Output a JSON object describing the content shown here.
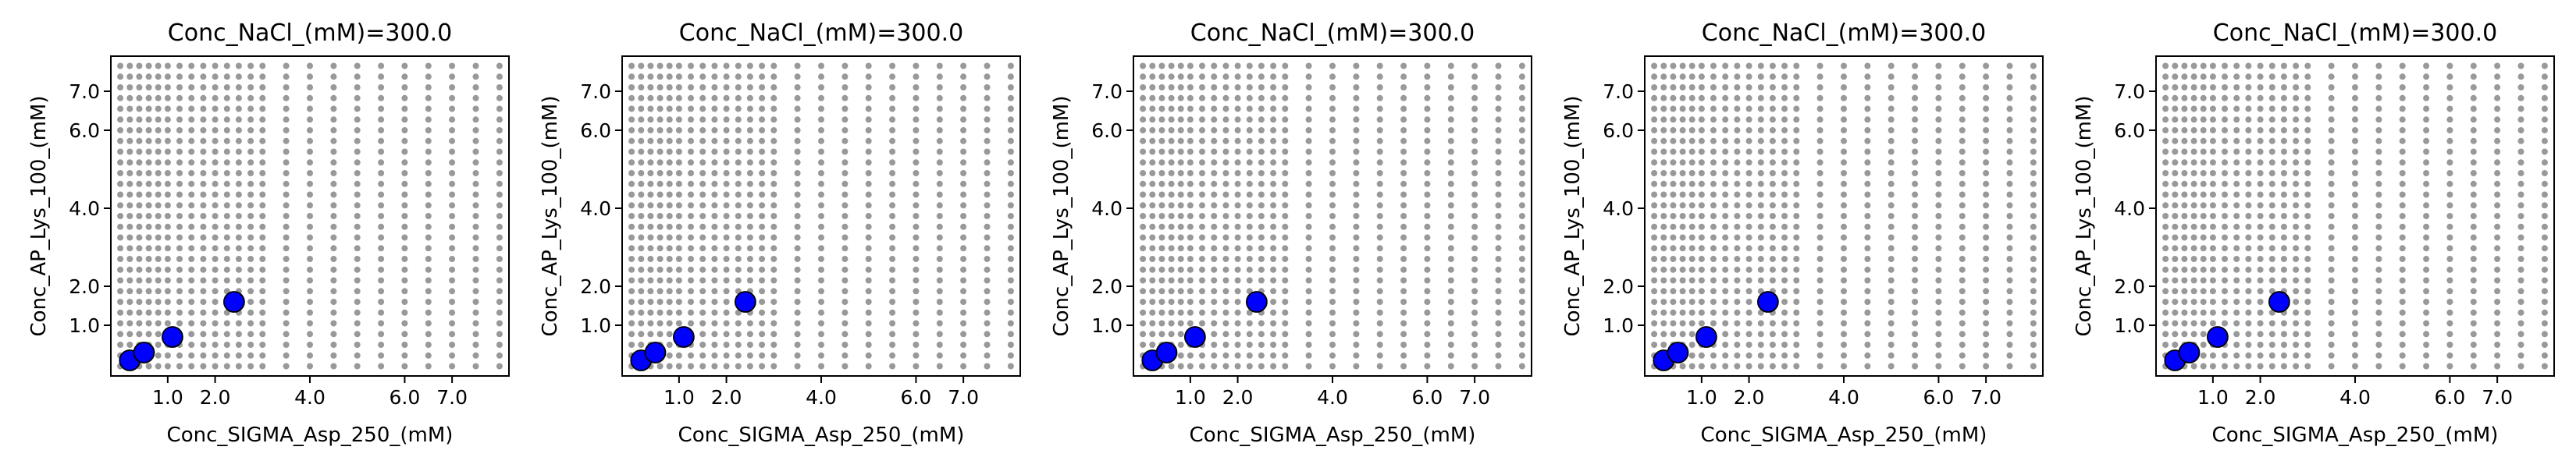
{
  "chart_data": [
    {
      "type": "scatter",
      "title": "Conc_NaCl_(mM)=300.0",
      "xlabel": "Conc_SIGMA_Asp_250_(mM)",
      "ylabel": "Conc_AP_Lys_100_(mM)",
      "xticks": [
        "1.0",
        "2.0",
        "4.0",
        "6.0",
        "7.0"
      ],
      "yticks": [
        "1.0",
        "2.0",
        "4.0",
        "6.0",
        "7.0"
      ],
      "xlim": [
        -0.2,
        8.2
      ],
      "ylim": [
        -0.3,
        7.9
      ],
      "grid": false,
      "series": [
        {
          "values": [
            [
              0.2,
              0.1
            ],
            [
              0.5,
              0.3
            ],
            [
              1.1,
              0.7
            ],
            [
              2.4,
              1.6
            ]
          ],
          "color": "#0000ff"
        }
      ]
    },
    {
      "type": "scatter",
      "title": "Conc_NaCl_(mM)=300.0",
      "xlabel": "Conc_SIGMA_Asp_250_(mM)",
      "ylabel": "Conc_AP_Lys_100_(mM)",
      "xticks": [
        "1.0",
        "2.0",
        "4.0",
        "6.0",
        "7.0"
      ],
      "yticks": [
        "1.0",
        "2.0",
        "4.0",
        "6.0",
        "7.0"
      ],
      "xlim": [
        -0.2,
        8.2
      ],
      "ylim": [
        -0.3,
        7.9
      ],
      "grid": false,
      "series": [
        {
          "values": [
            [
              0.2,
              0.1
            ],
            [
              0.5,
              0.3
            ],
            [
              1.1,
              0.7
            ],
            [
              2.4,
              1.6
            ]
          ],
          "color": "#0000ff"
        }
      ]
    },
    {
      "type": "scatter",
      "title": "Conc_NaCl_(mM)=300.0",
      "xlabel": "Conc_SIGMA_Asp_250_(mM)",
      "ylabel": "Conc_AP_Lys_100_(mM)",
      "xticks": [
        "1.0",
        "2.0",
        "4.0",
        "6.0",
        "7.0"
      ],
      "yticks": [
        "1.0",
        "2.0",
        "4.0",
        "6.0",
        "7.0"
      ],
      "xlim": [
        -0.2,
        8.2
      ],
      "ylim": [
        -0.3,
        7.9
      ],
      "grid": false,
      "series": [
        {
          "values": [
            [
              0.2,
              0.1
            ],
            [
              0.5,
              0.3
            ],
            [
              1.1,
              0.7
            ],
            [
              2.4,
              1.6
            ]
          ],
          "color": "#0000ff"
        }
      ]
    },
    {
      "type": "scatter",
      "title": "Conc_NaCl_(mM)=300.0",
      "xlabel": "Conc_SIGMA_Asp_250_(mM)",
      "ylabel": "Conc_AP_Lys_100_(mM)",
      "xticks": [
        "1.0",
        "2.0",
        "4.0",
        "6.0",
        "7.0"
      ],
      "yticks": [
        "1.0",
        "2.0",
        "4.0",
        "6.0",
        "7.0"
      ],
      "xlim": [
        -0.2,
        8.2
      ],
      "ylim": [
        -0.3,
        7.9
      ],
      "grid": false,
      "series": [
        {
          "values": [
            [
              0.2,
              0.1
            ],
            [
              0.5,
              0.3
            ],
            [
              1.1,
              0.7
            ],
            [
              2.4,
              1.6
            ]
          ],
          "color": "#0000ff"
        }
      ]
    },
    {
      "type": "scatter",
      "title": "Conc_NaCl_(mM)=300.0",
      "xlabel": "Conc_SIGMA_Asp_250_(mM)",
      "ylabel": "Conc_AP_Lys_100_(mM)",
      "xticks": [
        "1.0",
        "2.0",
        "4.0",
        "6.0",
        "7.0"
      ],
      "yticks": [
        "1.0",
        "2.0",
        "4.0",
        "6.0",
        "7.0"
      ],
      "xlim": [
        -0.2,
        8.2
      ],
      "ylim": [
        -0.3,
        7.9
      ],
      "grid": false,
      "series": [
        {
          "values": [
            [
              0.2,
              0.1
            ],
            [
              0.5,
              0.3
            ],
            [
              1.1,
              0.7
            ],
            [
              2.4,
              1.6
            ]
          ],
          "color": "#0000ff"
        }
      ]
    }
  ]
}
